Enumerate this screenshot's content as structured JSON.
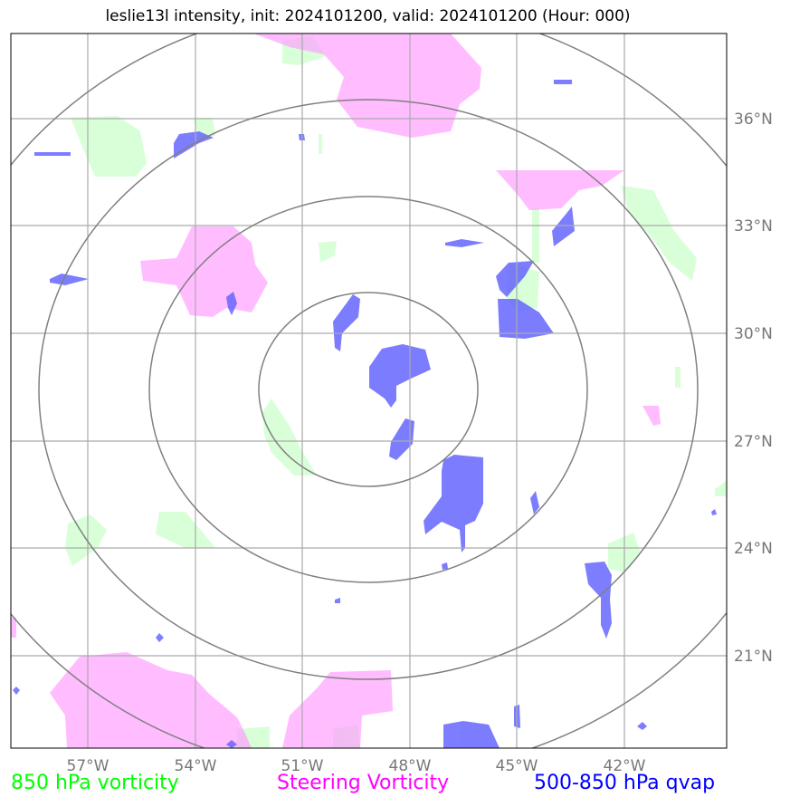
{
  "title": "leslie13l intensity, init: 2024101200, valid: 2024101200 (Hour: 000)",
  "map": {
    "lon_labels": [
      "57°W",
      "54°W",
      "51°W",
      "48°W",
      "45°W",
      "42°W"
    ],
    "lat_labels": [
      "36°N",
      "33°N",
      "30°N",
      "27°N",
      "24°N",
      "21°N"
    ]
  },
  "legend": [
    {
      "label": "850 hPa vorticity",
      "color": "#00ff00"
    },
    {
      "label": "Steering Vorticity",
      "color": "#ff00ff"
    },
    {
      "label": "500-850 hPa qvap",
      "color": "#0000ff"
    }
  ],
  "colors": {
    "green_fill": "#ccffcc",
    "magenta_fill": "#ff99ff",
    "blue_fill": "#6666ff",
    "grid": "#aaaaaa",
    "rings": "#808080"
  }
}
